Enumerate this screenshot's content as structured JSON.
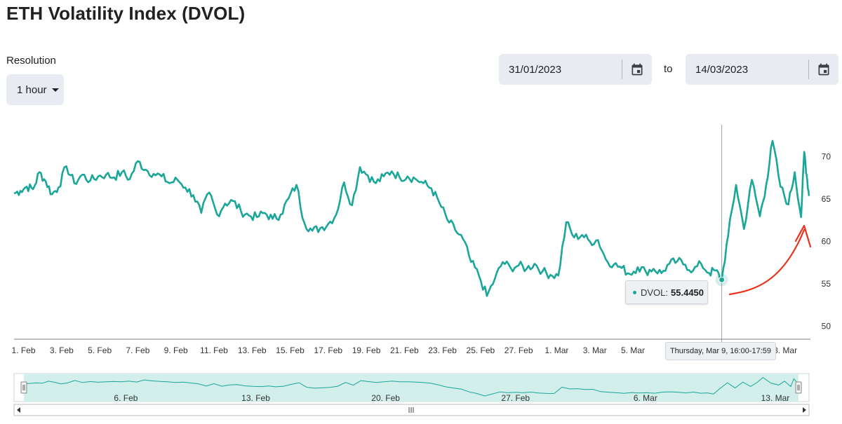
{
  "header": {
    "title": "ETH Volatility Index (DVOL)"
  },
  "resolution": {
    "label": "Resolution",
    "value": "1 hour"
  },
  "date_range": {
    "from": "31/01/2023",
    "to_label": "to",
    "to": "14/03/2023"
  },
  "icons": {
    "calendar": "calendar-icon",
    "dropdown": "caret-down-icon"
  },
  "colors": {
    "series": "#1aa699",
    "navigator_fill": "#d3efeb",
    "annotation": "#e8341c"
  },
  "tooltip": {
    "label": "DVOL:",
    "value": "55.4450",
    "time": "Thursday, Mar 9, 16:00-17:59"
  },
  "chart_data": {
    "type": "line",
    "title": "ETH Volatility Index (DVOL)",
    "x_start": "2023-01-31T12:00",
    "x_end": "2023-03-14T06:00",
    "x_ticks": [
      {
        "date": "2023-02-01",
        "label": "1. Feb"
      },
      {
        "date": "2023-02-03",
        "label": "3. Feb"
      },
      {
        "date": "2023-02-05",
        "label": "5. Feb"
      },
      {
        "date": "2023-02-07",
        "label": "7. Feb"
      },
      {
        "date": "2023-02-09",
        "label": "9. Feb"
      },
      {
        "date": "2023-02-11",
        "label": "11. Feb"
      },
      {
        "date": "2023-02-13",
        "label": "13. Feb"
      },
      {
        "date": "2023-02-15",
        "label": "15. Feb"
      },
      {
        "date": "2023-02-17",
        "label": "17. Feb"
      },
      {
        "date": "2023-02-19",
        "label": "19. Feb"
      },
      {
        "date": "2023-02-21",
        "label": "21. Feb"
      },
      {
        "date": "2023-02-23",
        "label": "23. Feb"
      },
      {
        "date": "2023-02-25",
        "label": "25. Feb"
      },
      {
        "date": "2023-02-27",
        "label": "27. Feb"
      },
      {
        "date": "2023-03-01",
        "label": "1. Mar"
      },
      {
        "date": "2023-03-03",
        "label": "3. Mar"
      },
      {
        "date": "2023-03-05",
        "label": "5. Mar"
      },
      {
        "date": "2023-03-07",
        "label": "7."
      },
      {
        "date": "2023-03-13",
        "label": "3. Mar"
      }
    ],
    "y_ticks": [
      50,
      55,
      60,
      65,
      70
    ],
    "ylim": [
      48.4,
      73.2
    ],
    "navigator_ticks": [
      {
        "date": "2023-02-06",
        "label": "6. Feb"
      },
      {
        "date": "2023-02-13",
        "label": "13. Feb"
      },
      {
        "date": "2023-02-20",
        "label": "20. Feb"
      },
      {
        "date": "2023-02-27",
        "label": "27. Feb"
      },
      {
        "date": "2023-03-06",
        "label": "6. Mar"
      },
      {
        "date": "2023-03-13",
        "label": "13. Mar"
      }
    ],
    "series": [
      {
        "name": "DVOL",
        "points": [
          [
            "2023-01-31T12:00",
            65.6
          ],
          [
            "2023-01-31T20:00",
            65.9
          ],
          [
            "2023-02-01T04:00",
            66.4
          ],
          [
            "2023-02-01T12:00",
            66.1
          ],
          [
            "2023-02-01T20:00",
            68.1
          ],
          [
            "2023-02-02T04:00",
            67.0
          ],
          [
            "2023-02-02T12:00",
            65.5
          ],
          [
            "2023-02-02T20:00",
            66.3
          ],
          [
            "2023-02-03T06:00",
            68.8
          ],
          [
            "2023-02-03T16:00",
            66.8
          ],
          [
            "2023-02-04T02:00",
            67.8
          ],
          [
            "2023-02-04T12:00",
            67.1
          ],
          [
            "2023-02-04T22:00",
            67.6
          ],
          [
            "2023-02-05T08:00",
            67.8
          ],
          [
            "2023-02-05T18:00",
            67.5
          ],
          [
            "2023-02-06T04:00",
            68.1
          ],
          [
            "2023-02-06T14:00",
            67.3
          ],
          [
            "2023-02-07T00:00",
            69.4
          ],
          [
            "2023-02-07T10:00",
            68.4
          ],
          [
            "2023-02-07T20:00",
            67.9
          ],
          [
            "2023-02-08T06:00",
            67.6
          ],
          [
            "2023-02-08T16:00",
            66.8
          ],
          [
            "2023-02-09T02:00",
            67.2
          ],
          [
            "2023-02-09T12:00",
            66.3
          ],
          [
            "2023-02-09T22:00",
            65.4
          ],
          [
            "2023-02-10T08:00",
            63.3
          ],
          [
            "2023-02-10T18:00",
            65.7
          ],
          [
            "2023-02-11T04:00",
            63.1
          ],
          [
            "2023-02-11T14:00",
            64.4
          ],
          [
            "2023-02-12T00:00",
            64.7
          ],
          [
            "2023-02-12T10:00",
            63.5
          ],
          [
            "2023-02-12T20:00",
            63.0
          ],
          [
            "2023-02-13T06:00",
            62.8
          ],
          [
            "2023-02-13T16:00",
            63.3
          ],
          [
            "2023-02-14T02:00",
            62.6
          ],
          [
            "2023-02-14T12:00",
            63.1
          ],
          [
            "2023-02-14T22:00",
            65.0
          ],
          [
            "2023-02-15T08:00",
            66.6
          ],
          [
            "2023-02-15T18:00",
            62.1
          ],
          [
            "2023-02-16T04:00",
            61.2
          ],
          [
            "2023-02-16T14:00",
            61.5
          ],
          [
            "2023-02-17T00:00",
            62.0
          ],
          [
            "2023-02-17T10:00",
            63.1
          ],
          [
            "2023-02-17T20:00",
            66.9
          ],
          [
            "2023-02-18T06:00",
            64.2
          ],
          [
            "2023-02-18T16:00",
            68.7
          ],
          [
            "2023-02-19T02:00",
            67.7
          ],
          [
            "2023-02-19T12:00",
            66.8
          ],
          [
            "2023-02-19T22:00",
            67.6
          ],
          [
            "2023-02-20T08:00",
            68.2
          ],
          [
            "2023-02-20T18:00",
            67.5
          ],
          [
            "2023-02-21T04:00",
            67.6
          ],
          [
            "2023-02-21T14:00",
            67.3
          ],
          [
            "2023-02-22T00:00",
            66.8
          ],
          [
            "2023-02-22T10:00",
            66.2
          ],
          [
            "2023-02-22T20:00",
            64.5
          ],
          [
            "2023-02-23T06:00",
            62.5
          ],
          [
            "2023-02-23T16:00",
            61.3
          ],
          [
            "2023-02-24T02:00",
            60.2
          ],
          [
            "2023-02-24T12:00",
            57.5
          ],
          [
            "2023-02-24T22:00",
            55.9
          ],
          [
            "2023-02-25T08:00",
            53.5
          ],
          [
            "2023-02-25T18:00",
            55.5
          ],
          [
            "2023-02-26T04:00",
            57.5
          ],
          [
            "2023-02-26T14:00",
            56.8
          ],
          [
            "2023-02-27T00:00",
            57.1
          ],
          [
            "2023-02-27T10:00",
            56.7
          ],
          [
            "2023-02-27T20:00",
            57.3
          ],
          [
            "2023-02-28T06:00",
            56.4
          ],
          [
            "2023-02-28T16:00",
            56.0
          ],
          [
            "2023-03-01T02:00",
            55.9
          ],
          [
            "2023-03-01T12:00",
            62.2
          ],
          [
            "2023-03-01T22:00",
            60.4
          ],
          [
            "2023-03-02T08:00",
            60.7
          ],
          [
            "2023-03-02T18:00",
            59.9
          ],
          [
            "2023-03-03T04:00",
            60.1
          ],
          [
            "2023-03-03T14:00",
            57.8
          ],
          [
            "2023-03-04T00:00",
            57.2
          ],
          [
            "2023-03-04T10:00",
            56.8
          ],
          [
            "2023-03-04T20:00",
            56.1
          ],
          [
            "2023-03-05T06:00",
            56.9
          ],
          [
            "2023-03-05T16:00",
            56.4
          ],
          [
            "2023-03-06T02:00",
            56.7
          ],
          [
            "2023-03-06T12:00",
            56.2
          ],
          [
            "2023-03-06T22:00",
            57.3
          ],
          [
            "2023-03-07T08:00",
            57.6
          ],
          [
            "2023-03-07T18:00",
            57.2
          ],
          [
            "2023-03-08T04:00",
            56.5
          ],
          [
            "2023-03-08T14:00",
            57.3
          ],
          [
            "2023-03-09T00:00",
            56.2
          ],
          [
            "2023-03-09T08:00",
            56.5
          ],
          [
            "2023-03-09T16:00",
            55.4
          ],
          [
            "2023-03-10T00:00",
            60.6
          ],
          [
            "2023-03-10T10:00",
            66.6
          ],
          [
            "2023-03-10T20:00",
            61.4
          ],
          [
            "2023-03-11T06:00",
            67.2
          ],
          [
            "2023-03-11T16:00",
            62.9
          ],
          [
            "2023-03-12T00:00",
            66.6
          ],
          [
            "2023-03-12T08:00",
            71.8
          ],
          [
            "2023-03-12T18:00",
            66.4
          ],
          [
            "2023-03-13T04:00",
            64.3
          ],
          [
            "2023-03-13T12:00",
            68.1
          ],
          [
            "2023-03-13T20:00",
            62.8
          ],
          [
            "2023-03-14T00:00",
            70.5
          ],
          [
            "2023-03-14T03:00",
            67.8
          ],
          [
            "2023-03-14T06:00",
            65.3
          ]
        ]
      }
    ],
    "grid": false,
    "legend": "none",
    "crosshair_date": "2023-03-09T16:00"
  }
}
